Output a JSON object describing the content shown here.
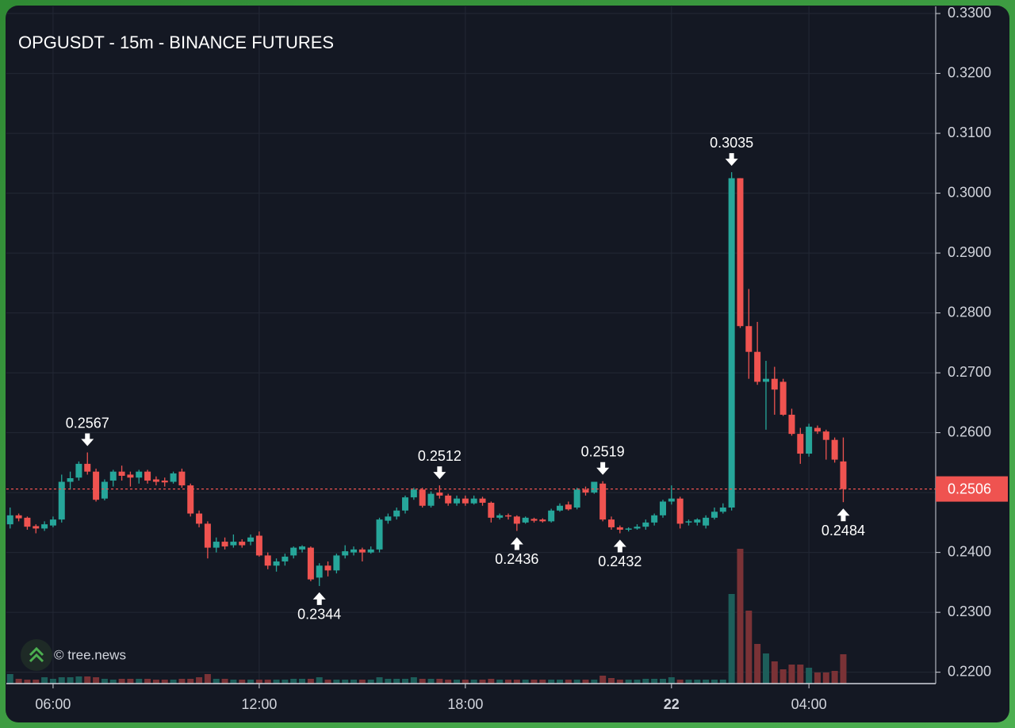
{
  "chart_data": {
    "type": "candlestick",
    "title": "OPGUSDT - 15m - BINANCE FUTURES",
    "watermark": "© tree.news",
    "up_color": "#26a69a",
    "down_color": "#ef5350",
    "volume_up_color": "#1d5e5a",
    "volume_down_color": "#7a3236",
    "x": [
      4.75,
      5,
      5.25,
      5.5,
      5.75,
      6,
      6.25,
      6.5,
      6.75,
      7,
      7.25,
      7.5,
      7.75,
      8,
      8.25,
      8.5,
      8.75,
      9,
      9.25,
      9.5,
      9.75,
      10,
      10.25,
      10.5,
      10.75,
      11,
      11.25,
      11.5,
      11.75,
      12,
      12.25,
      12.5,
      12.75,
      13,
      13.25,
      13.5,
      13.75,
      14,
      14.25,
      14.5,
      14.75,
      15,
      15.25,
      15.5,
      15.75,
      16,
      16.25,
      16.5,
      16.75,
      17,
      17.25,
      17.5,
      17.75,
      18,
      18.25,
      18.5,
      18.75,
      19,
      19.25,
      19.5,
      19.75,
      20,
      20.25,
      20.5,
      20.75,
      21,
      21.25,
      21.5,
      21.75,
      22,
      22.25,
      22.5,
      22.75,
      23,
      23.25,
      23.5,
      23.75,
      24,
      24.25,
      24.5,
      24.75,
      25,
      25.25,
      25.5,
      25.75,
      26,
      26.25,
      26.5,
      26.75,
      27,
      27.25,
      27.5,
      27.75,
      28,
      28.25,
      28.5,
      28.75,
      29
    ],
    "open": [
      0.2447,
      0.2462,
      0.2458,
      0.2444,
      0.244,
      0.2445,
      0.2455,
      0.2518,
      0.2525,
      0.2548,
      0.2535,
      0.249,
      0.252,
      0.2535,
      0.253,
      0.2525,
      0.2535,
      0.2522,
      0.252,
      0.2518,
      0.2535,
      0.2512,
      0.2465,
      0.2448,
      0.2408,
      0.2418,
      0.2412,
      0.2418,
      0.2418,
      0.2428,
      0.2395,
      0.2378,
      0.2385,
      0.2395,
      0.2405,
      0.2408,
      0.2358,
      0.2378,
      0.237,
      0.2395,
      0.24,
      0.2405,
      0.24,
      0.2405,
      0.2453,
      0.246,
      0.247,
      0.2492,
      0.2505,
      0.2478,
      0.25,
      0.2495,
      0.2482,
      0.249,
      0.2482,
      0.249,
      0.2483,
      0.2458,
      0.2462,
      0.246,
      0.245,
      0.2456,
      0.2455,
      0.2452,
      0.247,
      0.248,
      0.2475,
      0.2505,
      0.25,
      0.2515,
      0.2455,
      0.2442,
      0.2438,
      0.244,
      0.2443,
      0.245,
      0.2462,
      0.2485,
      0.249,
      0.245,
      0.245,
      0.2445,
      0.2458,
      0.2468,
      0.2475,
      0.3025,
      0.2778,
      0.2735,
      0.2685,
      0.269,
      0.2685,
      0.263,
      0.2598,
      0.2565,
      0.2608,
      0.2602,
      0.2588,
      0.2552
    ],
    "high": [
      0.2475,
      0.2465,
      0.246,
      0.2447,
      0.2452,
      0.246,
      0.253,
      0.2535,
      0.2552,
      0.2567,
      0.254,
      0.2522,
      0.2538,
      0.2545,
      0.2535,
      0.2538,
      0.2538,
      0.2527,
      0.2525,
      0.2535,
      0.254,
      0.2515,
      0.247,
      0.2452,
      0.2425,
      0.2425,
      0.243,
      0.2422,
      0.243,
      0.2435,
      0.24,
      0.239,
      0.2398,
      0.241,
      0.2412,
      0.241,
      0.2382,
      0.2385,
      0.2398,
      0.2412,
      0.241,
      0.2408,
      0.241,
      0.2458,
      0.2465,
      0.2475,
      0.2495,
      0.2508,
      0.2508,
      0.2502,
      0.2512,
      0.2498,
      0.2495,
      0.2495,
      0.2495,
      0.2493,
      0.2485,
      0.2465,
      0.2465,
      0.2462,
      0.246,
      0.2458,
      0.2457,
      0.2473,
      0.2482,
      0.2485,
      0.2508,
      0.251,
      0.2518,
      0.2519,
      0.246,
      0.2445,
      0.2442,
      0.2447,
      0.2455,
      0.2465,
      0.2488,
      0.2512,
      0.2493,
      0.2455,
      0.2457,
      0.2462,
      0.2475,
      0.2482,
      0.3035,
      0.3025,
      0.284,
      0.2785,
      0.272,
      0.271,
      0.269,
      0.264,
      0.2608,
      0.2615,
      0.2612,
      0.2605,
      0.2592,
      0.2592
    ],
    "low": [
      0.244,
      0.2452,
      0.2438,
      0.2432,
      0.2436,
      0.2442,
      0.245,
      0.2505,
      0.252,
      0.253,
      0.2485,
      0.2487,
      0.251,
      0.252,
      0.251,
      0.2515,
      0.2515,
      0.2512,
      0.251,
      0.2515,
      0.2508,
      0.246,
      0.2442,
      0.239,
      0.24,
      0.2405,
      0.2408,
      0.2408,
      0.2412,
      0.2393,
      0.2372,
      0.2368,
      0.2378,
      0.239,
      0.24,
      0.2352,
      0.2344,
      0.236,
      0.2365,
      0.239,
      0.2395,
      0.2385,
      0.2398,
      0.24,
      0.2448,
      0.2455,
      0.2465,
      0.2488,
      0.2475,
      0.2475,
      0.249,
      0.2478,
      0.2478,
      0.2478,
      0.248,
      0.2478,
      0.245,
      0.2455,
      0.2455,
      0.2436,
      0.2448,
      0.245,
      0.245,
      0.245,
      0.2468,
      0.247,
      0.2472,
      0.2495,
      0.2498,
      0.2452,
      0.2438,
      0.2432,
      0.2435,
      0.2438,
      0.2438,
      0.2445,
      0.2458,
      0.248,
      0.244,
      0.2445,
      0.2445,
      0.244,
      0.2455,
      0.2465,
      0.247,
      0.2775,
      0.269,
      0.268,
      0.2605,
      0.263,
      0.2628,
      0.2595,
      0.2548,
      0.256,
      0.2598,
      0.2555,
      0.255,
      0.2484
    ],
    "close": [
      0.2462,
      0.2457,
      0.2443,
      0.244,
      0.2447,
      0.2455,
      0.2518,
      0.2524,
      0.2548,
      0.2535,
      0.2488,
      0.2518,
      0.2535,
      0.2528,
      0.2525,
      0.2535,
      0.252,
      0.2518,
      0.2517,
      0.2532,
      0.2512,
      0.2465,
      0.2448,
      0.2408,
      0.2418,
      0.241,
      0.2418,
      0.2412,
      0.2425,
      0.2395,
      0.2378,
      0.2385,
      0.2393,
      0.2408,
      0.241,
      0.2355,
      0.2378,
      0.237,
      0.2395,
      0.2402,
      0.2405,
      0.24,
      0.2405,
      0.2455,
      0.246,
      0.247,
      0.2492,
      0.2505,
      0.2478,
      0.2498,
      0.2495,
      0.2482,
      0.249,
      0.2482,
      0.249,
      0.2483,
      0.2458,
      0.2462,
      0.246,
      0.2448,
      0.2458,
      0.2453,
      0.2452,
      0.247,
      0.2478,
      0.2472,
      0.2505,
      0.25,
      0.2518,
      0.2455,
      0.2442,
      0.2438,
      0.244,
      0.2443,
      0.245,
      0.2462,
      0.2485,
      0.249,
      0.2448,
      0.2452,
      0.2455,
      0.2458,
      0.2468,
      0.2475,
      0.3025,
      0.2778,
      0.2735,
      0.2685,
      0.269,
      0.2672,
      0.263,
      0.2598,
      0.2565,
      0.261,
      0.2602,
      0.2588,
      0.2555,
      0.2506
    ],
    "volume": [
      12,
      6,
      5,
      5,
      8,
      6,
      8,
      8,
      9,
      9,
      8,
      6,
      5,
      6,
      6,
      6,
      6,
      5,
      5,
      5,
      6,
      6,
      8,
      12,
      6,
      6,
      5,
      5,
      5,
      5,
      5,
      5,
      5,
      6,
      6,
      6,
      8,
      5,
      5,
      5,
      5,
      5,
      5,
      8,
      6,
      6,
      6,
      8,
      6,
      6,
      6,
      5,
      5,
      5,
      5,
      5,
      6,
      5,
      5,
      5,
      5,
      5,
      5,
      5,
      5,
      5,
      5,
      5,
      5,
      10,
      7,
      5,
      5,
      5,
      6,
      6,
      6,
      8,
      5,
      5,
      5,
      5,
      5,
      5,
      113,
      170,
      92,
      50,
      38,
      28,
      18,
      24,
      24,
      20,
      14,
      14,
      16,
      37
    ],
    "xlim": [
      4.64,
      31.69
    ],
    "xticks": [
      {
        "value": 6,
        "label": "06:00"
      },
      {
        "value": 12,
        "label": "12:00"
      },
      {
        "value": 18,
        "label": "18:00"
      },
      {
        "value": 24,
        "label": "22",
        "bold": true
      },
      {
        "value": 28,
        "label": "04:00"
      }
    ],
    "ylim": [
      0.2181,
      0.3312
    ],
    "yticks": [
      {
        "value": 0.22,
        "label": "0.2200"
      },
      {
        "value": 0.23,
        "label": "0.2300"
      },
      {
        "value": 0.24,
        "label": "0.2400"
      },
      {
        "value": 0.25,
        "label": "0.2500"
      },
      {
        "value": 0.26,
        "label": "0.2600"
      },
      {
        "value": 0.27,
        "label": "0.2700"
      },
      {
        "value": 0.28,
        "label": "0.2800"
      },
      {
        "value": 0.29,
        "label": "0.2900"
      },
      {
        "value": 0.3,
        "label": "0.3000"
      },
      {
        "value": 0.31,
        "label": "0.3100"
      },
      {
        "value": 0.32,
        "label": "0.3200"
      },
      {
        "value": 0.33,
        "label": "0.3300"
      }
    ],
    "grid": true,
    "last_price": 0.2506,
    "markers": [
      {
        "value": 0.2567,
        "x": 7.0,
        "kind": "high"
      },
      {
        "value": 0.2344,
        "x": 13.75,
        "kind": "low"
      },
      {
        "value": 0.2512,
        "x": 17.25,
        "kind": "high"
      },
      {
        "value": 0.2436,
        "x": 19.5,
        "kind": "low"
      },
      {
        "value": 0.2519,
        "x": 22.0,
        "kind": "high"
      },
      {
        "value": 0.2432,
        "x": 22.5,
        "kind": "low"
      },
      {
        "value": 0.3035,
        "x": 25.75,
        "kind": "high"
      },
      {
        "value": 0.2484,
        "x": 29.0,
        "kind": "low"
      }
    ]
  }
}
